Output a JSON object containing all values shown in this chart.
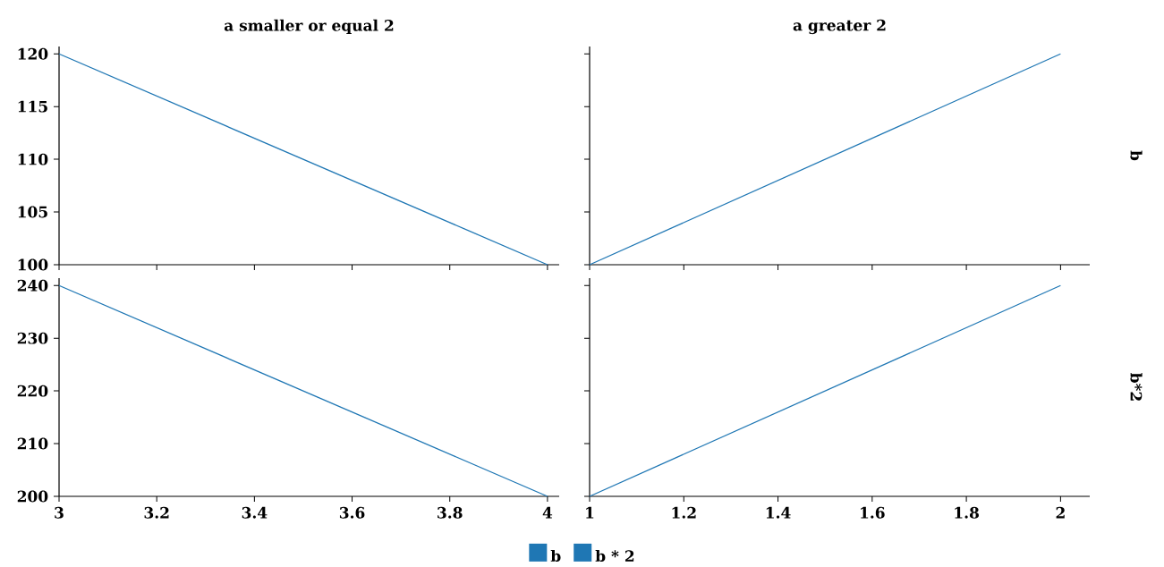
{
  "chart_data": [
    {
      "type": "line",
      "title": "a smaller or equal 2",
      "x": [
        3,
        4
      ],
      "series": [
        {
          "name": "b",
          "color": "#1f77b4",
          "values": [
            120,
            100
          ]
        }
      ],
      "xlim": [
        3,
        4.024
      ],
      "ylim": [
        100,
        120.7
      ],
      "xticks": [
        3,
        3.2,
        3.4,
        3.6,
        3.8,
        4
      ],
      "yticks": [
        100,
        105,
        110,
        115,
        120
      ],
      "tick_labels": "y",
      "legend": "bottom"
    },
    {
      "type": "line",
      "title": "a greater 2",
      "x": [
        1,
        2
      ],
      "series": [
        {
          "color": "#1f77b4",
          "values": [
            100,
            120
          ]
        }
      ],
      "xlim": [
        1,
        2.062
      ],
      "ylim": [
        100,
        120.7
      ],
      "xticks": [
        1,
        1.2,
        1.4,
        1.6,
        1.8,
        2
      ],
      "yticks": [
        100,
        105,
        110,
        115,
        120
      ],
      "tick_labels": false,
      "annotations": [
        "b"
      ]
    },
    {
      "type": "line",
      "x": [
        3,
        4
      ],
      "series": [
        {
          "name": "b * 2",
          "color": "#1f77b4",
          "values": [
            240,
            200
          ]
        }
      ],
      "xlim": [
        3,
        4.024
      ],
      "ylim": [
        200,
        241.4
      ],
      "xticks": [
        3,
        3.2,
        3.4,
        3.6,
        3.8,
        4
      ],
      "yticks": [
        200,
        210,
        220,
        230,
        240
      ],
      "legend": "bottom"
    },
    {
      "type": "line",
      "x": [
        1,
        2
      ],
      "series": [
        {
          "color": "#1f77b4",
          "values": [
            200,
            240
          ]
        }
      ],
      "xlim": [
        1,
        2.062
      ],
      "ylim": [
        200,
        241.4
      ],
      "xticks": [
        1,
        1.2,
        1.4,
        1.6,
        1.8,
        2
      ],
      "yticks": [
        200,
        210,
        220,
        230,
        240
      ],
      "tick_labels": "x",
      "annotations": [
        "b*2"
      ]
    }
  ]
}
